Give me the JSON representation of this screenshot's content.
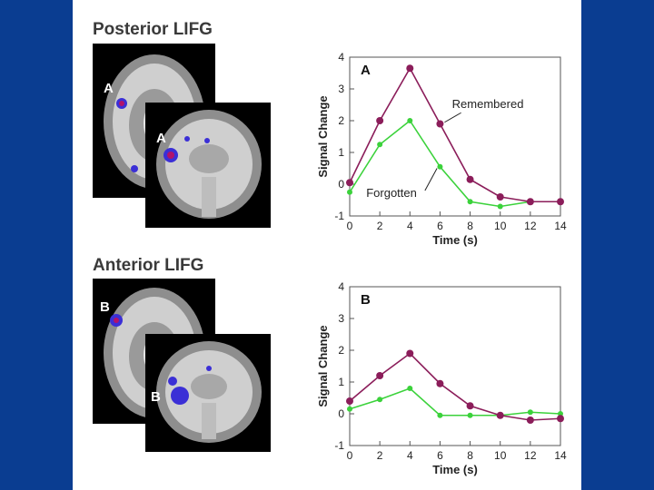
{
  "slide": {
    "background": "#0a3d91",
    "sections": [
      {
        "title": "Posterior LIFG",
        "axial_label": "A",
        "coronal_label": "A"
      },
      {
        "title": "Anterior LIFG",
        "axial_label": "B",
        "coronal_label": "B"
      }
    ]
  },
  "colors": {
    "remembered": "#8b1d5a",
    "forgotten": "#3bd23b",
    "activation": "#3b2fd6",
    "hotspot": "#b0136b"
  },
  "chart_data": [
    {
      "type": "line",
      "panel_label": "A",
      "x": [
        0,
        2,
        4,
        6,
        8,
        10,
        12,
        14
      ],
      "xlabel": "Time (s)",
      "ylabel": "Signal Change",
      "xlim": [
        0,
        14
      ],
      "ylim": [
        -1,
        4
      ],
      "xticks": [
        0,
        2,
        4,
        6,
        8,
        10,
        12,
        14
      ],
      "yticks": [
        -1,
        0,
        1,
        2,
        3,
        4
      ],
      "grid": false,
      "series": [
        {
          "name": "Remembered",
          "values": [
            0.05,
            2.0,
            3.65,
            1.9,
            0.15,
            -0.4,
            -0.55,
            -0.55
          ]
        },
        {
          "name": "Forgotten",
          "values": [
            -0.25,
            1.25,
            2.0,
            0.55,
            -0.55,
            -0.7,
            -0.55,
            -0.55
          ]
        }
      ]
    },
    {
      "type": "line",
      "panel_label": "B",
      "x": [
        0,
        2,
        4,
        6,
        8,
        10,
        12,
        14
      ],
      "xlabel": "Time (s)",
      "ylabel": "Signal Change",
      "xlim": [
        0,
        14
      ],
      "ylim": [
        -1,
        4
      ],
      "xticks": [
        0,
        2,
        4,
        6,
        8,
        10,
        12,
        14
      ],
      "yticks": [
        -1,
        0,
        1,
        2,
        3,
        4
      ],
      "grid": false,
      "series": [
        {
          "name": "Remembered",
          "values": [
            0.4,
            1.2,
            1.9,
            0.95,
            0.25,
            -0.05,
            -0.2,
            -0.15
          ]
        },
        {
          "name": "Forgotten",
          "values": [
            0.15,
            0.45,
            0.8,
            -0.05,
            -0.05,
            -0.05,
            0.05,
            0.0
          ]
        }
      ]
    }
  ]
}
